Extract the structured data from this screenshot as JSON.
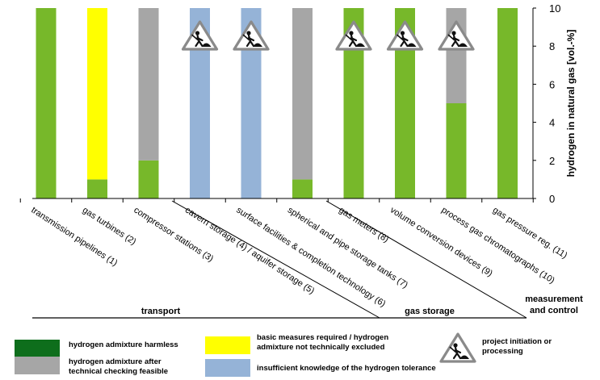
{
  "chart_data": {
    "type": "bar",
    "stacked": true,
    "ylabel": "hydrogen in natural gas [vol.-%]",
    "ylim": [
      0,
      10
    ],
    "yticks": [
      "0",
      "2",
      "4",
      "6",
      "8",
      "10"
    ],
    "categories": [
      "transmission pipelines (1)",
      "gas turbines (2)",
      "compressor stations (3)",
      "cavern storage (4) / aquifer storage (5)",
      "surface facilities & completion technology (6)",
      "spherical and pipe storage tanks (7)",
      "gas meters (8)",
      "volume conversion devices (9)",
      "process gas chromatographs (10)",
      "gas pressure reg. (11)"
    ],
    "segments": [
      [
        {
          "status": "harmless",
          "value": 10
        }
      ],
      [
        {
          "status": "harmless",
          "value": 1
        },
        {
          "status": "basic_measures",
          "value": 9
        }
      ],
      [
        {
          "status": "harmless",
          "value": 2
        },
        {
          "status": "after_checking",
          "value": 8
        }
      ],
      [
        {
          "status": "insufficient_knowledge",
          "value": 10
        }
      ],
      [
        {
          "status": "insufficient_knowledge",
          "value": 10
        }
      ],
      [
        {
          "status": "harmless",
          "value": 1
        },
        {
          "status": "after_checking",
          "value": 9
        }
      ],
      [
        {
          "status": "harmless",
          "value": 10
        }
      ],
      [
        {
          "status": "harmless",
          "value": 10
        }
      ],
      [
        {
          "status": "harmless",
          "value": 5
        },
        {
          "status": "after_checking",
          "value": 5
        }
      ],
      [
        {
          "status": "harmless",
          "value": 10
        }
      ]
    ],
    "project_markers": [
      false,
      false,
      false,
      true,
      true,
      false,
      true,
      true,
      true,
      false
    ],
    "groups": [
      {
        "label": "transport"
      },
      {
        "label": "gas storage"
      },
      {
        "label_lines": [
          "measurement",
          "and control"
        ]
      }
    ],
    "legend": [
      {
        "key": "harmless",
        "label_lines": [
          "hydrogen admixture harmless"
        ]
      },
      {
        "key": "after_checking",
        "label_lines": [
          "hydrogen admixture  after",
          "technical checking feasible"
        ]
      },
      {
        "key": "basic_measures",
        "label_lines": [
          "basic measures required / hydrogen",
          "admixture not technically excluded"
        ]
      },
      {
        "key": "insufficient_knowledge",
        "label_lines": [
          "insufficient knowledge of the hydrogen tolerance"
        ]
      },
      {
        "key": "project",
        "label_lines": [
          "project initiation or",
          "processing"
        ]
      }
    ],
    "colors": {
      "harmless": "#77b82a",
      "harmless_legend": "#0e6e1c",
      "after_checking": "#a6a6a6",
      "basic_measures": "#ffff00",
      "insufficient_knowledge": "#95b3d7"
    },
    "grid": false
  }
}
